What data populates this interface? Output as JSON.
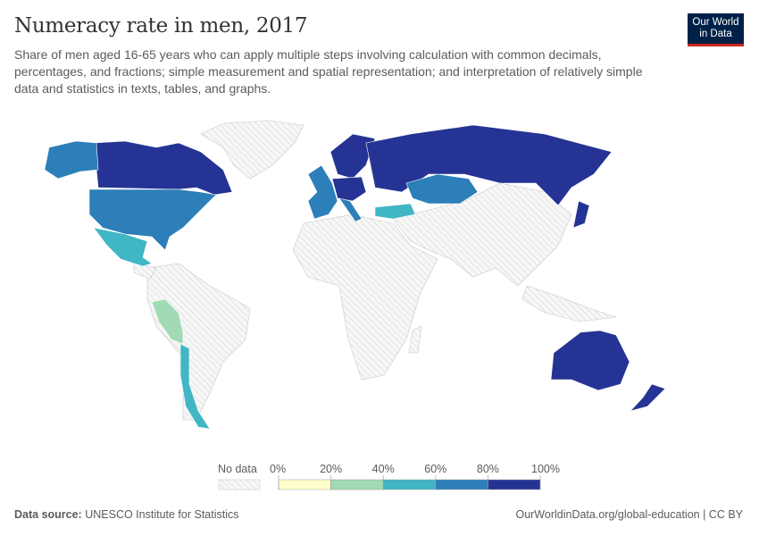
{
  "header": {
    "title": "Numeracy rate in men, 2017",
    "subtitle": "Share of men aged 16-65 years who can apply multiple steps involving calculation with common decimals, percentages, and fractions; simple measurement and spatial representation; and interpretation of relatively simple data and statistics in texts, tables, and graphs.",
    "logo_line1": "Our World",
    "logo_line2": "in Data"
  },
  "legend": {
    "no_data_label": "No data",
    "ticks": [
      "0%",
      "20%",
      "40%",
      "60%",
      "80%",
      "100%"
    ],
    "bins": [
      {
        "range": "0-20%",
        "color": "#ffffcc"
      },
      {
        "range": "20-40%",
        "color": "#a1dab4"
      },
      {
        "range": "40-60%",
        "color": "#41b6c4"
      },
      {
        "range": "60-80%",
        "color": "#2c7fb8"
      },
      {
        "range": "80-100%",
        "color": "#253494"
      }
    ],
    "no_data_color": "#e6e6e6"
  },
  "map_data": {
    "Canada": "80-100%",
    "Russia": "80-100%",
    "Nordic countries": "80-100%",
    "Central Europe": "80-100%",
    "Japan": "80-100%",
    "Australia": "80-100%",
    "New Zealand": "80-100%",
    "United States": "60-80%",
    "Western Europe": "60-80%",
    "Kazakhstan": "60-80%",
    "Mexico": "40-60%",
    "Chile": "40-60%",
    "Turkey": "40-60%",
    "Peru": "20-40%"
  },
  "footer": {
    "source_label": "Data source:",
    "source": "UNESCO Institute for Statistics",
    "link": "OurWorldinData.org/global-education | CC BY"
  }
}
